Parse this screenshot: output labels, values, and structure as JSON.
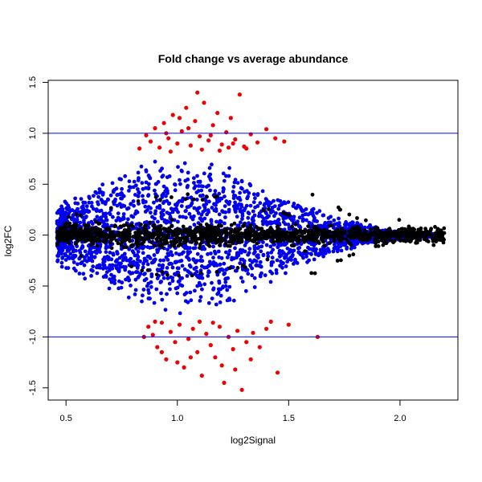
{
  "chart_data": {
    "type": "scatter",
    "title": "Fold change vs average abundance",
    "xlabel": "log2Signal",
    "ylabel": "log2FC",
    "xlim": [
      0.42,
      2.26
    ],
    "ylim": [
      -1.62,
      1.52
    ],
    "x_ticks": [
      "0.5",
      "1.0",
      "1.5",
      "2.0"
    ],
    "x_tick_values": [
      0.5,
      1.0,
      1.5,
      2.0
    ],
    "y_ticks": [
      "-1.5",
      "-1.0",
      "-0.5",
      "0.0",
      "0.5",
      "1.0",
      "1.5"
    ],
    "y_tick_values": [
      -1.5,
      -1.0,
      -0.5,
      0.0,
      0.5,
      1.0,
      1.5
    ],
    "reference_lines": {
      "y": [
        1.0,
        -1.0
      ],
      "color": "#0000ff"
    },
    "grid": false,
    "series": [
      {
        "color": "#000000"
      },
      {
        "color": "#0000ee"
      },
      {
        "color": "#ee0000"
      }
    ],
    "points": {
      "red": [
        [
          0.86,
          0.98
        ],
        [
          0.88,
          0.92
        ],
        [
          0.9,
          1.05
        ],
        [
          0.92,
          0.86
        ],
        [
          0.94,
          1.1
        ],
        [
          0.96,
          0.95
        ],
        [
          0.98,
          1.18
        ],
        [
          1.0,
          0.9
        ],
        [
          1.02,
          1.02
        ],
        [
          1.04,
          1.25
        ],
        [
          1.06,
          0.88
        ],
        [
          1.08,
          1.12
        ],
        [
          1.1,
          0.97
        ],
        [
          1.12,
          1.3
        ],
        [
          1.14,
          0.93
        ],
        [
          1.16,
          1.08
        ],
        [
          1.18,
          1.2
        ],
        [
          1.2,
          0.89
        ],
        [
          1.22,
          1.01
        ],
        [
          1.24,
          1.15
        ],
        [
          1.26,
          0.94
        ],
        [
          1.28,
          1.38
        ],
        [
          1.3,
          0.87
        ],
        [
          1.33,
          0.99
        ],
        [
          1.36,
          0.91
        ],
        [
          1.4,
          1.04
        ],
        [
          1.44,
          0.95
        ],
        [
          1.48,
          0.92
        ],
        [
          0.95,
          1.0
        ],
        [
          1.05,
          1.05
        ],
        [
          1.15,
          0.98
        ],
        [
          1.25,
          0.9
        ],
        [
          1.09,
          1.4
        ],
        [
          1.01,
          1.15
        ],
        [
          0.97,
          0.82
        ],
        [
          1.11,
          0.84
        ],
        [
          1.19,
          0.83
        ],
        [
          1.23,
          0.86
        ],
        [
          1.31,
          0.85
        ],
        [
          0.83,
          0.85
        ],
        [
          0.87,
          -0.9
        ],
        [
          0.89,
          -0.98
        ],
        [
          0.91,
          -1.1
        ],
        [
          0.93,
          -0.86
        ],
        [
          0.95,
          -1.22
        ],
        [
          0.97,
          -0.95
        ],
        [
          0.99,
          -1.05
        ],
        [
          1.01,
          -0.88
        ],
        [
          1.03,
          -1.3
        ],
        [
          1.05,
          -1.02
        ],
        [
          1.07,
          -0.92
        ],
        [
          1.09,
          -1.15
        ],
        [
          1.11,
          -1.38
        ],
        [
          1.13,
          -0.97
        ],
        [
          1.15,
          -1.08
        ],
        [
          1.17,
          -1.2
        ],
        [
          1.19,
          -0.9
        ],
        [
          1.21,
          -1.45
        ],
        [
          1.23,
          -1.0
        ],
        [
          1.25,
          -1.12
        ],
        [
          1.27,
          -0.94
        ],
        [
          1.29,
          -1.52
        ],
        [
          1.31,
          -1.05
        ],
        [
          1.34,
          -0.96
        ],
        [
          1.37,
          -1.1
        ],
        [
          1.4,
          -0.92
        ],
        [
          1.45,
          -1.35
        ],
        [
          1.5,
          -0.88
        ],
        [
          0.85,
          -1.0
        ],
        [
          1.0,
          -1.25
        ],
        [
          1.1,
          -0.85
        ],
        [
          1.2,
          -1.28
        ],
        [
          0.93,
          -1.15
        ],
        [
          1.06,
          -1.2
        ],
        [
          1.16,
          -0.86
        ],
        [
          1.33,
          -1.22
        ],
        [
          1.63,
          -1.0
        ],
        [
          0.9,
          -0.85
        ],
        [
          1.26,
          -1.32
        ],
        [
          1.42,
          -0.85
        ]
      ]
    }
  }
}
